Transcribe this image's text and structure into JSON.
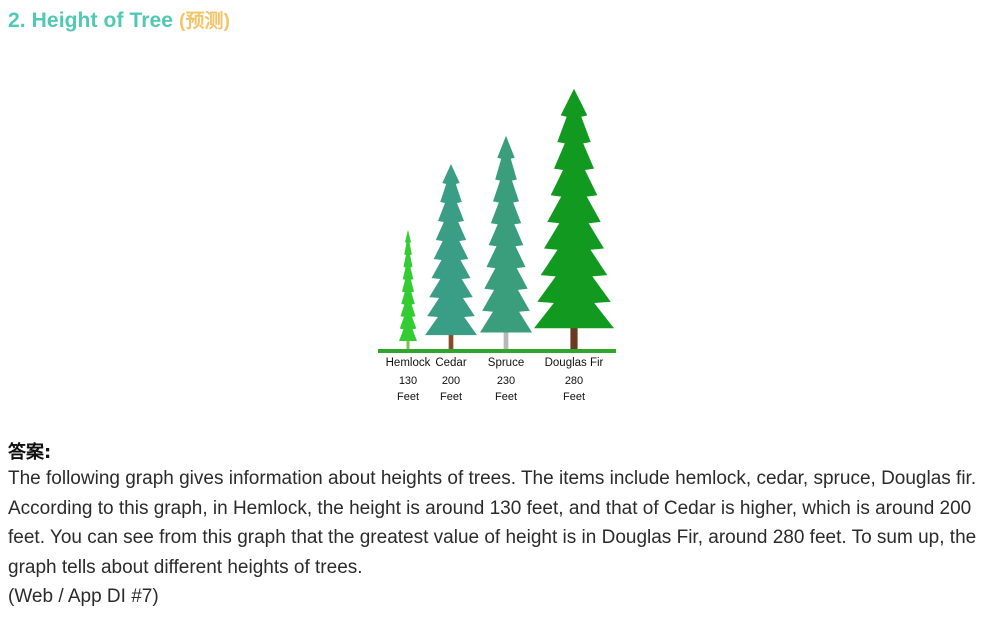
{
  "heading": {
    "title": "2. Height of Tree",
    "tag": "(预测)"
  },
  "chart_data": {
    "type": "bar",
    "categories": [
      "Hemlock",
      "Cedar",
      "Spruce",
      "Douglas Fir"
    ],
    "values": [
      130,
      200,
      230,
      280
    ],
    "value_labels": [
      "130",
      "200",
      "230",
      "280"
    ],
    "unit_label": "Feet",
    "colors": [
      "#33cc33",
      "#3a9e86",
      "#3a9e7c",
      "#119a1f"
    ]
  },
  "answer": {
    "label": "答案:",
    "text": "The following graph gives information about heights of trees. The items include hemlock, cedar, spruce, Douglas fir. According to this graph, in Hemlock, the height is around 130 feet, and that of Cedar is higher, which is around 200 feet. You can see from this graph that the greatest value of height is in Douglas Fir, around 280 feet. To sum up, the graph tells about different heights of trees.",
    "source": "(Web / App DI #7)"
  }
}
